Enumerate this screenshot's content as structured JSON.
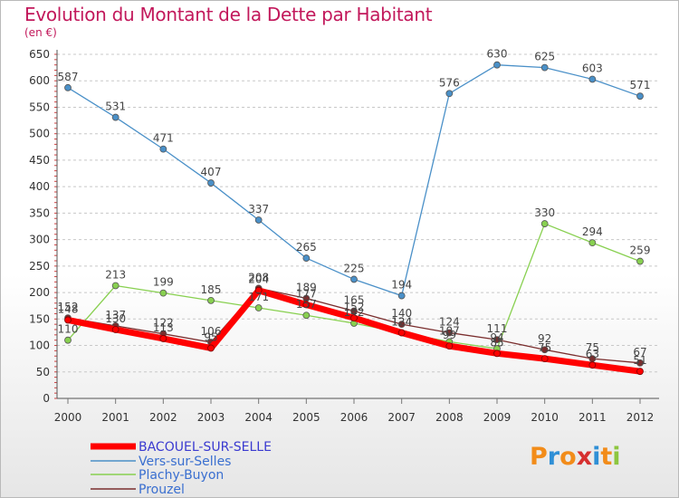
{
  "title": "Evolution du Montant de la Dette par Habitant",
  "subtitle": "(en €)",
  "logo": {
    "letters": [
      "P",
      "r",
      "o",
      "x",
      "i",
      "t",
      "i"
    ],
    "colors": [
      "#f28c1a",
      "#2f8fd6",
      "#f28c1a",
      "#d62f2f",
      "#2f8fd6",
      "#f28c1a",
      "#8dc63f"
    ]
  },
  "chart_data": {
    "type": "line",
    "title": "Evolution du Montant de la Dette par Habitant",
    "subtitle": "(en €)",
    "xlabel": "",
    "ylabel": "",
    "x": [
      "2000",
      "2001",
      "2002",
      "2003",
      "2004",
      "2005",
      "2006",
      "2007",
      "2008",
      "2009",
      "2010",
      "2011",
      "2012"
    ],
    "ylim": [
      0,
      650
    ],
    "yticks": [
      0,
      50,
      100,
      150,
      200,
      250,
      300,
      350,
      400,
      450,
      500,
      550,
      600,
      650
    ],
    "grid": "horizontal dashed",
    "legend_position": "bottom-left",
    "series": [
      {
        "name": "BACOUEL-SUR-SELLE",
        "color": "#ff0000",
        "values": [
          148,
          130,
          113,
          95,
          204,
          177,
          152,
          124,
          99,
          85,
          75,
          63,
          51
        ]
      },
      {
        "name": "Vers-sur-Selles",
        "color": "#4a90c8",
        "values": [
          587,
          531,
          471,
          407,
          337,
          265,
          225,
          194,
          576,
          630,
          625,
          603,
          571
        ]
      },
      {
        "name": "Plachy-Buyon",
        "color": "#88d050",
        "values": [
          110,
          213,
          199,
          185,
          171,
          157,
          142,
          124,
          107,
          94,
          330,
          294,
          259
        ]
      },
      {
        "name": "Prouzel",
        "color": "#7a2e2e",
        "values": [
          152,
          137,
          122,
          106,
          208,
          189,
          165,
          140,
          124,
          111,
          92,
          75,
          67
        ]
      }
    ]
  }
}
